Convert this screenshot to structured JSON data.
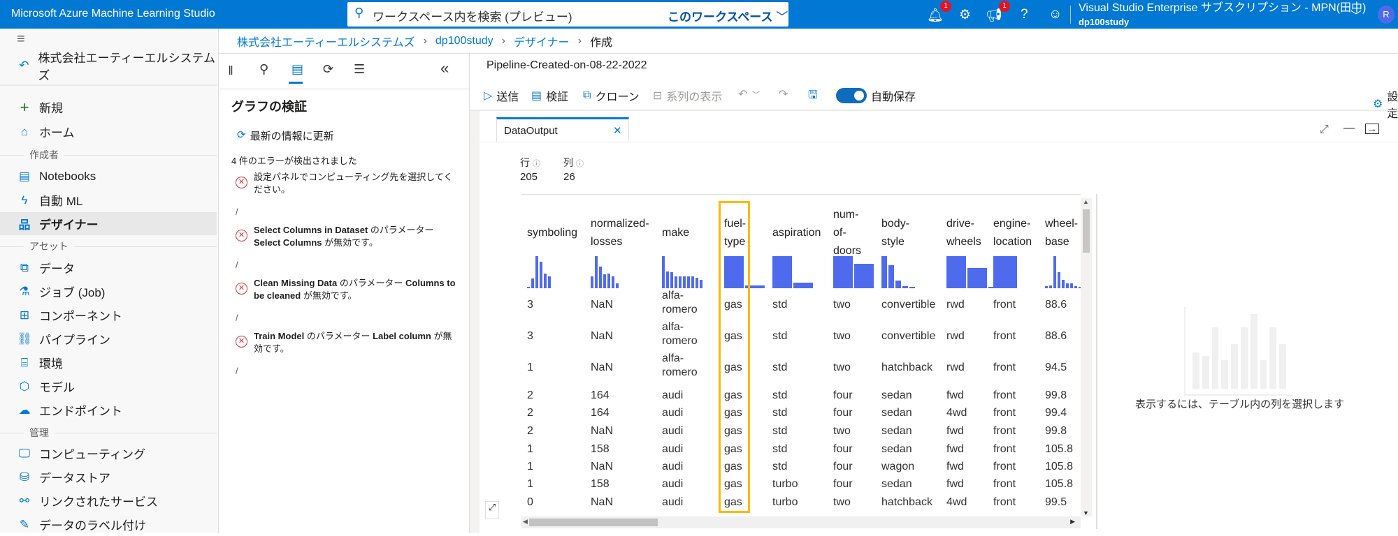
{
  "topbar": {
    "app_title": "Microsoft Azure Machine Learning Studio",
    "search_placeholder": "ワークスペース内を検索 (プレビュー)",
    "search_scope": "このワークスペース",
    "notif_count": "1",
    "announce_count": "1",
    "subscription": "Visual Studio Enterprise サブスクリプション - MPN(田中)",
    "workspace": "dp100study",
    "avatar_initial": "R"
  },
  "sidebar": {
    "back_label": "株式会社エーティーエルシステムズ",
    "new": "新規",
    "home": "ホーム",
    "sec_author": "作成者",
    "notebooks": "Notebooks",
    "automl": "自動 ML",
    "designer": "デザイナー",
    "sec_assets": "アセット",
    "data": "データ",
    "jobs": "ジョブ (Job)",
    "components": "コンポーネント",
    "pipelines": "パイプライン",
    "environments": "環境",
    "models": "モデル",
    "endpoints": "エンドポイント",
    "sec_manage": "管理",
    "compute": "コンピューティング",
    "datastores": "データストア",
    "linked": "リンクされたサービス",
    "labeling": "データのラベル付け"
  },
  "breadcrumb": [
    "株式会社エーティーエルシステムズ",
    "dp100study",
    "デザイナー",
    "作成"
  ],
  "leftpanel": {
    "title": "グラフの検証",
    "refresh": "最新の情報に更新",
    "error_count": "4 件のエラーが検出されました",
    "errors": [
      {
        "a": "",
        "b": "設定パネルでコンピューティング先を選択してください。",
        "c": "",
        "d": ""
      },
      {
        "a": "Select Columns in Dataset",
        "b": " のパラメーター ",
        "c": "Select Columns",
        "d": " が無効です。"
      },
      {
        "a": "Clean Missing Data",
        "b": " のパラメーター ",
        "c": "Columns to be cleaned",
        "d": " が無効です。"
      },
      {
        "a": "Train Model",
        "b": " のパラメーター ",
        "c": "Label column",
        "d": " が無効です。"
      }
    ],
    "slash": "/"
  },
  "pipeline": {
    "title": "Pipeline-Created-on-08-22-2022",
    "submit": "送信",
    "validate": "検証",
    "clone": "クローン",
    "lineage": "系列の表示",
    "autosave": "自動保存",
    "autosave_on": true,
    "settings": "設定"
  },
  "dataoutput": {
    "tab": "DataOutput",
    "rows_label": "行",
    "cols_label": "列",
    "rows": "205",
    "cols": "26",
    "columns": [
      {
        "name": "symboling",
        "hist": [
          0.02,
          0.3,
          1,
          0.82,
          0.45,
          0.38
        ]
      },
      {
        "name": "normalized-\nlosses",
        "hist": [
          0.37,
          1,
          0.67,
          0.43,
          0.45,
          0.38,
          0.16
        ]
      },
      {
        "name": "make",
        "hist": [
          1,
          0.53,
          0.5,
          0.38,
          0.38,
          0.38,
          0.37,
          0.36,
          0.33,
          0.27
        ]
      },
      {
        "name": "fuel-\ntype",
        "hist": [
          1,
          0.09
        ]
      },
      {
        "name": "aspiration",
        "hist": [
          1,
          0.18
        ]
      },
      {
        "name": "num-\nof-\ndoors",
        "hist": [
          1,
          0.76
        ]
      },
      {
        "name": "body-style",
        "hist": [
          1,
          0.72,
          0.24,
          0.07,
          0.04
        ]
      },
      {
        "name": "drive-\nwheels",
        "hist": [
          1,
          0.62,
          0.04
        ]
      },
      {
        "name": "engine-\nlocation",
        "hist": [
          1
        ]
      },
      {
        "name": "wheel-\nbase",
        "hist": [
          0.07,
          0.09,
          1,
          0.5,
          0.26,
          0.15,
          0.16,
          0.06,
          0.03
        ]
      }
    ],
    "rows_data": [
      [
        "3",
        "NaN",
        "alfa-\nromero",
        "gas",
        "std",
        "two",
        "convertible",
        "rwd",
        "front",
        "88.6"
      ],
      [
        "3",
        "NaN",
        "alfa-\nromero",
        "gas",
        "std",
        "two",
        "convertible",
        "rwd",
        "front",
        "88.6"
      ],
      [
        "1",
        "NaN",
        "alfa-\nromero",
        "gas",
        "std",
        "two",
        "hatchback",
        "rwd",
        "front",
        "94.5"
      ],
      [
        "2",
        "164",
        "audi",
        "gas",
        "std",
        "four",
        "sedan",
        "fwd",
        "front",
        "99.8"
      ],
      [
        "2",
        "164",
        "audi",
        "gas",
        "std",
        "four",
        "sedan",
        "4wd",
        "front",
        "99.4"
      ],
      [
        "2",
        "NaN",
        "audi",
        "gas",
        "std",
        "two",
        "sedan",
        "fwd",
        "front",
        "99.8"
      ],
      [
        "1",
        "158",
        "audi",
        "gas",
        "std",
        "four",
        "sedan",
        "fwd",
        "front",
        "105.8"
      ],
      [
        "1",
        "NaN",
        "audi",
        "gas",
        "std",
        "four",
        "wagon",
        "fwd",
        "front",
        "105.8"
      ],
      [
        "1",
        "158",
        "audi",
        "gas",
        "turbo",
        "four",
        "sedan",
        "fwd",
        "front",
        "105.8"
      ],
      [
        "0",
        "NaN",
        "audi",
        "gas",
        "turbo",
        "two",
        "hatchback",
        "4wd",
        "front",
        "99.5"
      ]
    ],
    "highlight_color": "#ffb900",
    "bar_color": "#4f6bed",
    "placeholder_text": "表示するには、テーブル内の列を選択します"
  }
}
